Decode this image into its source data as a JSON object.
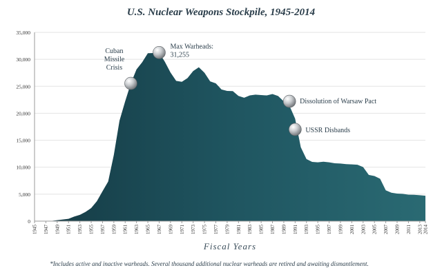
{
  "chart_data": {
    "type": "area",
    "title": "U.S. Nuclear Weapons Stockpile, 1945-2014",
    "xlabel": "Fiscal Years",
    "ylabel": "",
    "footnote": "*Includes active and inactive warheads.  Several thousand additional nuclear warheads are retired and awaiting dismantlement.",
    "ylim": [
      0,
      35000
    ],
    "xlim": [
      1945,
      2014
    ],
    "yticks": [
      "0",
      "5,000",
      "10,000",
      "15,000",
      "20,000",
      "25,000",
      "30,000",
      "35,000"
    ],
    "xticks": [
      "1945",
      "1947",
      "1949",
      "1951",
      "1953",
      "1955",
      "1957",
      "1959",
      "1961",
      "1963",
      "1965",
      "1967",
      "1969",
      "1971",
      "1973",
      "1975",
      "1977",
      "1979",
      "1981",
      "1983",
      "1985",
      "1987",
      "1989",
      "1991",
      "1993",
      "1995",
      "1997",
      "1999",
      "2001",
      "2003",
      "2005",
      "2007",
      "2009",
      "2011",
      "2013",
      "2014"
    ],
    "grid": true,
    "fill_color": "#1f5560",
    "x": [
      1945,
      1946,
      1947,
      1948,
      1949,
      1950,
      1951,
      1952,
      1953,
      1954,
      1955,
      1956,
      1957,
      1958,
      1959,
      1960,
      1961,
      1962,
      1963,
      1964,
      1965,
      1966,
      1967,
      1968,
      1969,
      1970,
      1971,
      1972,
      1973,
      1974,
      1975,
      1976,
      1977,
      1978,
      1979,
      1980,
      1981,
      1982,
      1983,
      1984,
      1985,
      1986,
      1987,
      1988,
      1989,
      1990,
      1991,
      1992,
      1993,
      1994,
      1995,
      1996,
      1997,
      1998,
      1999,
      2000,
      2001,
      2002,
      2003,
      2004,
      2005,
      2006,
      2007,
      2008,
      2009,
      2010,
      2011,
      2012,
      2013,
      2014
    ],
    "values": [
      2,
      9,
      13,
      50,
      170,
      299,
      438,
      841,
      1169,
      1703,
      2422,
      3692,
      5543,
      7345,
      12298,
      18638,
      22229,
      25540,
      28133,
      29463,
      31139,
      31175,
      31255,
      29561,
      27552,
      26008,
      25830,
      26516,
      27835,
      28537,
      27519,
      25914,
      25542,
      24418,
      24138,
      24104,
      23208,
      22886,
      23305,
      23459,
      23368,
      23317,
      23575,
      23205,
      22217,
      21392,
      19008,
      13708,
      11511,
      10979,
      10904,
      11011,
      10903,
      10732,
      10685,
      10577,
      10526,
      10457,
      10027,
      8570,
      8360,
      7853,
      5709,
      5273,
      5113,
      5066,
      4897,
      4881,
      4804,
      4717
    ],
    "annotations": [
      {
        "text": [
          "Cuban",
          "Missile",
          "Crisis"
        ],
        "x": 1962,
        "y": 25540
      },
      {
        "text": [
          "Max Warheads:",
          "31,255"
        ],
        "x": 1967,
        "y": 31255
      },
      {
        "text": [
          "Dissolution of Warsaw Pact"
        ],
        "x": 1990,
        "y": 22217
      },
      {
        "text": [
          "USSR Disbands"
        ],
        "x": 1991,
        "y": 17000
      }
    ]
  }
}
